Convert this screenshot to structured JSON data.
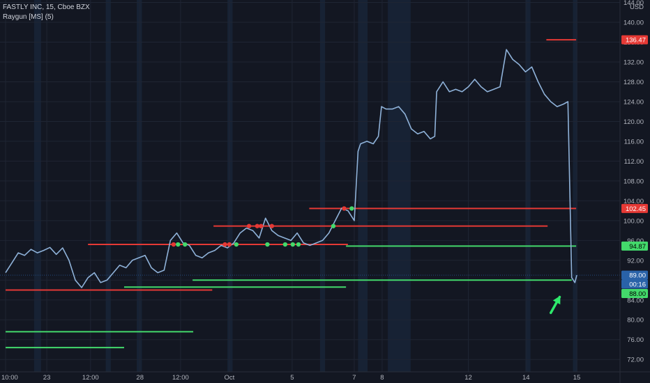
{
  "header": {
    "symbol_line": "FASTLY INC, 15, Cboe BZX",
    "indicator_line": "Raygun [MS] (5)"
  },
  "axis": {
    "currency": "USD",
    "x_ticks": [
      "10:00",
      "23",
      "12:00",
      "28",
      "12:00",
      "Oct",
      "5",
      "7",
      "8",
      "12",
      "14",
      "15"
    ],
    "y_ticks": [
      72,
      76,
      80,
      84,
      88,
      92,
      96,
      100,
      104,
      108,
      112,
      116,
      120,
      124,
      128,
      132,
      136,
      140,
      144
    ]
  },
  "price_tags": [
    {
      "label": "136.47",
      "value": 136.47,
      "color": "#e53935",
      "text_color": "#ffffff"
    },
    {
      "label": "102.45",
      "value": 102.45,
      "color": "#e53935",
      "text_color": "#ffffff"
    },
    {
      "label": "94.87",
      "value": 94.87,
      "color": "#43d96b",
      "text_color": "#000000"
    },
    {
      "label": "89.00",
      "value": 89.0,
      "color": "#2962a8",
      "text_color": "#ffffff"
    },
    {
      "label": "00:16",
      "value": 87.2,
      "color": "#2962a8",
      "text_color": "#ffffff"
    },
    {
      "label": "88.00",
      "value": 85.3,
      "color": "#43d96b",
      "text_color": "#000000"
    }
  ],
  "colors": {
    "background": "#131722",
    "grid": "#1f2533",
    "session_shade": "#1c2b44",
    "price": "#8fb2d9",
    "resistance": "#e53935",
    "support": "#43d96b",
    "arrow": "#2ee86b",
    "dot_red": "#e53935",
    "dot_green": "#43d96b"
  },
  "chart_data": {
    "type": "line",
    "ylim": [
      69.5,
      144.5
    ],
    "x_range": [
      0,
      100
    ],
    "x_tick_positions": [
      0,
      6.5,
      13.4,
      21.2,
      27.6,
      35.3,
      45.2,
      55.0,
      59.4,
      73.0,
      82.1,
      90.1
    ],
    "series": [
      {
        "values": [
          [
            0,
            89.5
          ],
          [
            1,
            91.5
          ],
          [
            2,
            93.5
          ],
          [
            3,
            93.0
          ],
          [
            4,
            94.2
          ],
          [
            5,
            93.5
          ],
          [
            6,
            94.0
          ],
          [
            7,
            94.6
          ],
          [
            8,
            93.2
          ],
          [
            9,
            94.5
          ],
          [
            10,
            92.0
          ],
          [
            11,
            88.0
          ],
          [
            12,
            86.5
          ],
          [
            13,
            88.5
          ],
          [
            14,
            89.5
          ],
          [
            15,
            87.5
          ],
          [
            16,
            88.0
          ],
          [
            17,
            89.5
          ],
          [
            18,
            91.0
          ],
          [
            19,
            90.5
          ],
          [
            20,
            92.0
          ],
          [
            21,
            92.5
          ],
          [
            22,
            93.0
          ],
          [
            23,
            90.5
          ],
          [
            24,
            89.5
          ],
          [
            25,
            90.0
          ],
          [
            26,
            96.0
          ],
          [
            27,
            97.5
          ],
          [
            28,
            95.5
          ],
          [
            29,
            95.0
          ],
          [
            30,
            93.0
          ],
          [
            31,
            92.5
          ],
          [
            32,
            93.5
          ],
          [
            33,
            94.0
          ],
          [
            34,
            95.0
          ],
          [
            35,
            94.5
          ],
          [
            36,
            95.5
          ],
          [
            37,
            97.5
          ],
          [
            38,
            98.5
          ],
          [
            39,
            98.0
          ],
          [
            40,
            96.5
          ],
          [
            41,
            100.5
          ],
          [
            42,
            98.0
          ],
          [
            43,
            97.0
          ],
          [
            44,
            96.5
          ],
          [
            45,
            96.0
          ],
          [
            46,
            97.5
          ],
          [
            47,
            95.5
          ],
          [
            48,
            95.0
          ],
          [
            49,
            95.5
          ],
          [
            50,
            96.0
          ],
          [
            51,
            97.5
          ],
          [
            52,
            100.0
          ],
          [
            53,
            102.5
          ],
          [
            54,
            102.0
          ],
          [
            55,
            100.0
          ],
          [
            55.6,
            114.0
          ],
          [
            56,
            115.5
          ],
          [
            57,
            116.0
          ],
          [
            58,
            115.5
          ],
          [
            58.8,
            117.0
          ],
          [
            59.3,
            123.0
          ],
          [
            60,
            122.5
          ],
          [
            61,
            122.5
          ],
          [
            62,
            123.0
          ],
          [
            63,
            121.5
          ],
          [
            64,
            118.5
          ],
          [
            65,
            117.5
          ],
          [
            66,
            118.0
          ],
          [
            67,
            116.5
          ],
          [
            67.7,
            117.0
          ],
          [
            68,
            126.0
          ],
          [
            69,
            128.0
          ],
          [
            70,
            126.0
          ],
          [
            71,
            126.5
          ],
          [
            72,
            126.0
          ],
          [
            73,
            127.0
          ],
          [
            74,
            128.5
          ],
          [
            75,
            127.0
          ],
          [
            76,
            126.0
          ],
          [
            77,
            126.5
          ],
          [
            78,
            127.0
          ],
          [
            79,
            134.5
          ],
          [
            80,
            132.5
          ],
          [
            81,
            131.5
          ],
          [
            82,
            130.0
          ],
          [
            83,
            131.0
          ],
          [
            84,
            128.0
          ],
          [
            85,
            125.5
          ],
          [
            86,
            124.0
          ],
          [
            87,
            123.0
          ],
          [
            88,
            123.5
          ],
          [
            88.7,
            124.0
          ],
          [
            89.3,
            88.5
          ],
          [
            89.8,
            87.5
          ],
          [
            90.1,
            89.0
          ]
        ]
      }
    ],
    "resistance_levels": [
      {
        "y": 136.47,
        "x0": 85.3,
        "x1": 90.0
      },
      {
        "y": 102.45,
        "x0": 47.9,
        "x1": 90.0
      },
      {
        "y": 98.9,
        "x0": 32.8,
        "x1": 85.5
      },
      {
        "y": 95.2,
        "x0": 13.0,
        "x1": 54.0
      },
      {
        "y": 86.0,
        "x0": 0.0,
        "x1": 32.6
      }
    ],
    "support_levels": [
      {
        "y": 94.87,
        "x0": 53.7,
        "x1": 90.0
      },
      {
        "y": 88.0,
        "x0": 29.5,
        "x1": 89.3
      },
      {
        "y": 86.6,
        "x0": 18.7,
        "x1": 53.7
      },
      {
        "y": 77.6,
        "x0": 0.0,
        "x1": 29.6
      },
      {
        "y": 74.4,
        "x0": 0.0,
        "x1": 18.7
      }
    ],
    "markers": [
      {
        "x": 26.5,
        "y": 95.2,
        "color": "red"
      },
      {
        "x": 27.2,
        "y": 95.2,
        "color": "green"
      },
      {
        "x": 28.3,
        "y": 95.2,
        "color": "green"
      },
      {
        "x": 34.6,
        "y": 95.2,
        "color": "red"
      },
      {
        "x": 35.3,
        "y": 95.2,
        "color": "red"
      },
      {
        "x": 36.4,
        "y": 95.2,
        "color": "green"
      },
      {
        "x": 38.4,
        "y": 98.9,
        "color": "red"
      },
      {
        "x": 39.7,
        "y": 98.9,
        "color": "red"
      },
      {
        "x": 40.3,
        "y": 98.9,
        "color": "red"
      },
      {
        "x": 41.3,
        "y": 95.2,
        "color": "green"
      },
      {
        "x": 42.0,
        "y": 98.9,
        "color": "red"
      },
      {
        "x": 44.1,
        "y": 95.2,
        "color": "green"
      },
      {
        "x": 45.3,
        "y": 95.2,
        "color": "green"
      },
      {
        "x": 46.2,
        "y": 95.2,
        "color": "green"
      },
      {
        "x": 51.7,
        "y": 98.9,
        "color": "green"
      },
      {
        "x": 53.4,
        "y": 102.45,
        "color": "red"
      },
      {
        "x": 54.6,
        "y": 102.45,
        "color": "green"
      }
    ],
    "arrow": {
      "x_from": 86.0,
      "y_from": 81.4,
      "x_to": 87.4,
      "y_to": 84.6
    }
  }
}
